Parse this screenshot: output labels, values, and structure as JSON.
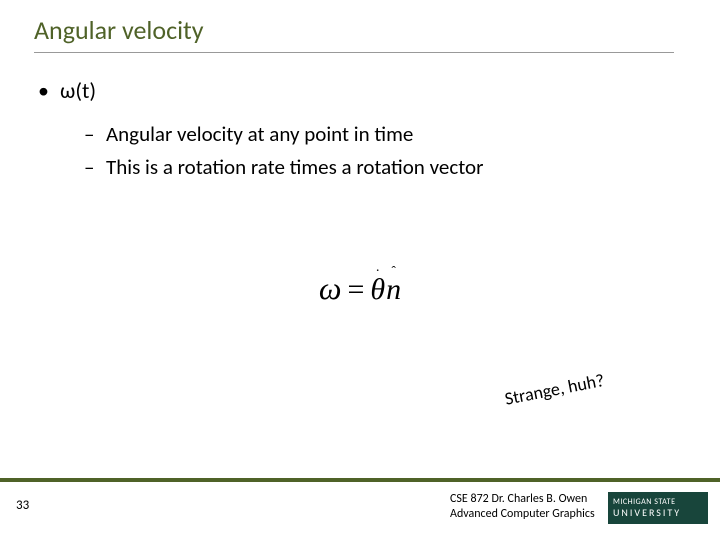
{
  "title": {
    "text": "Angular velocity",
    "color": "#4f6228"
  },
  "bullet": {
    "symbol": "•",
    "text": "ω(t)"
  },
  "subitems": [
    {
      "dash": "–",
      "text": "Angular velocity at any point in time"
    },
    {
      "dash": "–",
      "text": "This is a rotation rate times a rotation vector"
    }
  ],
  "equation": {
    "omega": "ω",
    "equals": "=",
    "theta": "θ",
    "n": "n",
    "dot": "·",
    "hat_char": "ˆ"
  },
  "annotation": {
    "text": "Strange, huh?",
    "color": "#000000"
  },
  "footer": {
    "rule_color": "#4f6228",
    "page_number": "33",
    "line1": "CSE 872 Dr. Charles B. Owen",
    "line2": "Advanced Computer Graphics",
    "logo_bg": "#18453b",
    "logo_line1": "MICHIGAN STATE",
    "logo_line2": "UNIVERSITY"
  }
}
